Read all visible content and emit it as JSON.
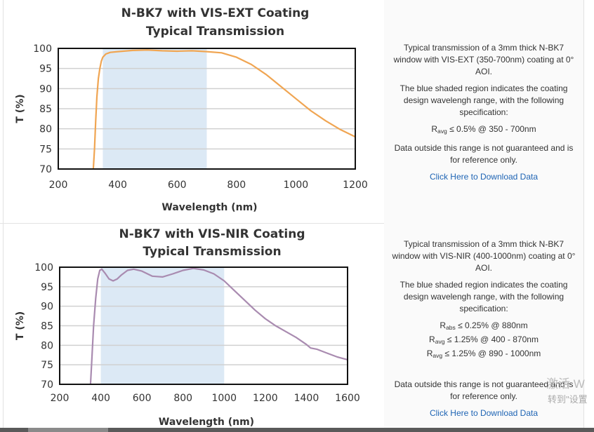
{
  "chart_data": [
    {
      "type": "line",
      "title": "N-BK7 with VIS-EXT Coating",
      "subtitle": "Typical Transmission",
      "xlabel": "Wavelength (nm)",
      "ylabel": "T (%)",
      "xlim": [
        200,
        1200
      ],
      "ylim": [
        70,
        100
      ],
      "xticks": [
        "200",
        "400",
        "600",
        "800",
        "1000",
        "1200"
      ],
      "yticks": [
        "70",
        "75",
        "80",
        "85",
        "90",
        "95",
        "100"
      ],
      "shaded_range": [
        350,
        700
      ],
      "grid": true,
      "series": [
        {
          "color": "#f0a552",
          "x": [
            318,
            322,
            326,
            330,
            335,
            340,
            345,
            350,
            360,
            375,
            400,
            450,
            500,
            550,
            600,
            650,
            700,
            750,
            800,
            850,
            900,
            950,
            1000,
            1050,
            1100,
            1150,
            1200
          ],
          "y": [
            70,
            75,
            82,
            88,
            92.5,
            95,
            96.8,
            97.8,
            98.6,
            99.0,
            99.2,
            99.5,
            99.6,
            99.4,
            99.3,
            99.4,
            99.2,
            98.9,
            97.8,
            96.0,
            93.5,
            90.5,
            87.5,
            84.5,
            82.0,
            79.8,
            78.0
          ]
        }
      ]
    },
    {
      "type": "line",
      "title": "N-BK7 with VIS-NIR Coating",
      "subtitle": "Typical Transmission",
      "xlabel": "Wavelength (nm)",
      "ylabel": "T (%)",
      "xlim": [
        200,
        1600
      ],
      "ylim": [
        70,
        100
      ],
      "xticks": [
        "200",
        "400",
        "600",
        "800",
        "1000",
        "1200",
        "1400",
        "1600"
      ],
      "yticks": [
        "70",
        "75",
        "80",
        "85",
        "90",
        "95",
        "100"
      ],
      "shaded_range": [
        400,
        1000
      ],
      "grid": true,
      "series": [
        {
          "color": "#a98bb0",
          "x": [
            350,
            355,
            365,
            375,
            385,
            395,
            405,
            420,
            440,
            460,
            480,
            500,
            530,
            560,
            600,
            650,
            700,
            750,
            800,
            850,
            900,
            950,
            1000,
            1050,
            1100,
            1150,
            1200,
            1250,
            1300,
            1350,
            1400,
            1420,
            1450,
            1500,
            1550,
            1600
          ],
          "y": [
            70,
            75,
            85,
            92,
            97,
            99.2,
            99.5,
            98.5,
            97.0,
            96.5,
            97.0,
            98.0,
            99.2,
            99.5,
            99.0,
            97.7,
            97.5,
            98.3,
            99.2,
            99.7,
            99.3,
            98.3,
            96.5,
            94.0,
            91.5,
            89.0,
            86.8,
            85.0,
            83.5,
            82.0,
            80.2,
            79.3,
            79.0,
            78.0,
            77.0,
            76.3
          ]
        }
      ]
    }
  ],
  "panels": [
    {
      "para1": "Typical transmission of a 3mm thick N-BK7 window with VIS-EXT (350-700nm) coating at 0° AOI.",
      "para2": "The blue shaded region indicates the coating design wavelengh range, with the following specification:",
      "specs": [
        {
          "sym": "R",
          "sub": "avg",
          "text": " ≤ 0.5% @ 350 - 700nm"
        }
      ],
      "para3": "Data outside this range is not guaranteed and is for reference only.",
      "link": "Click Here to Download Data"
    },
    {
      "para1": "Typical transmission of a 3mm thick N-BK7 window with VIS-NIR (400-1000nm) coating at 0° AOI.",
      "para2": "The blue shaded region indicates the coating design wavelengh range, with the following specification:",
      "specs": [
        {
          "sym": "R",
          "sub": "abs",
          "text": " ≤ 0.25% @ 880nm"
        },
        {
          "sym": "R",
          "sub": "avg",
          "text": " ≤ 1.25% @ 400 - 870nm"
        },
        {
          "sym": "R",
          "sub": "avg",
          "text": " ≤ 1.25% @ 890 - 1000nm"
        }
      ],
      "para3": "Data outside this range is not guaranteed and is for reference only.",
      "link": "Click Here to Download Data"
    }
  ],
  "watermark": {
    "line1": "激活 W",
    "line2": "转到\"设置"
  },
  "colors": {
    "shade": "#dce9f5",
    "grid": "#d0d0d0",
    "link": "#1e64b4"
  }
}
